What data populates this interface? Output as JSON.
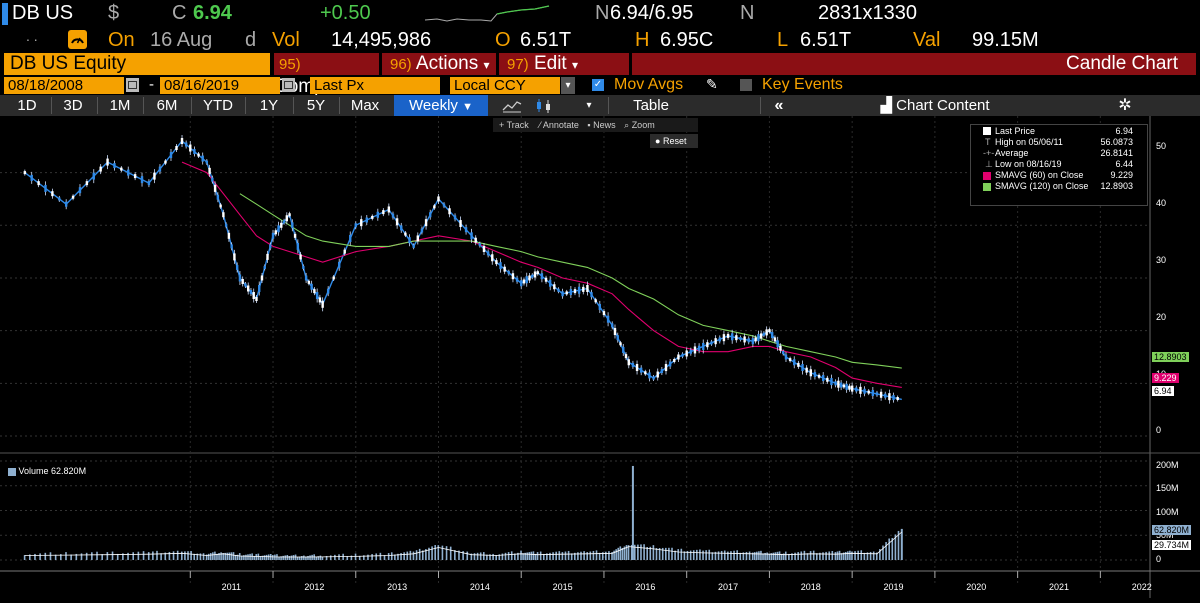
{
  "header": {
    "ticker": "DB US",
    "currency_symbol": "$",
    "close_label": "C",
    "last_price": "6.94",
    "change": "+0.50",
    "bid_ask_prefix": "N",
    "bid_ask": "6.94/6.95",
    "bid_ask_suffix": "N",
    "size": "2831x1330",
    "on_label": "On",
    "date": "16 Aug",
    "date_suffix": "d",
    "vol_label": "Vol",
    "volume": "14,495,986",
    "open_label": "O",
    "open": "6.51T",
    "high_label": "H",
    "high": "6.95C",
    "low_label": "L",
    "low": "6.51T",
    "val_label": "Val",
    "value": "99.15M",
    "dots": ". ."
  },
  "menu": {
    "security": "DB US Equity",
    "compare_num": "95)",
    "compare": "Compare",
    "actions_num": "96)",
    "actions": "Actions",
    "edit_num": "97)",
    "edit": "Edit",
    "title": "Candle Chart"
  },
  "controls": {
    "start_date": "08/18/2008",
    "dash": "-",
    "end_date": "08/16/2019",
    "field": "Last Px",
    "currency": "Local CCY",
    "mov_avgs": "Mov Avgs",
    "key_events": "Key Events"
  },
  "toolbar": {
    "periods": [
      "1D",
      "3D",
      "1M",
      "6M",
      "YTD",
      "1Y",
      "5Y",
      "Max"
    ],
    "frequency": "Weekly",
    "table": "Table",
    "chart_content": "Chart Content"
  },
  "chart_tools": {
    "track": "Track",
    "annotate": "Annotate",
    "news": "News",
    "zoom": "Zoom",
    "reset": "Reset"
  },
  "legend": {
    "last_price_label": "Last Price",
    "last_price_value": "6.94",
    "high_label": "High on 05/06/11",
    "high_value": "56.0873",
    "average_label": "Average",
    "average_value": "26.8141",
    "low_label": "Low on 08/16/19",
    "low_value": "6.44",
    "sma60_label": "SMAVG (60)  on Close",
    "sma60_value": "9.229",
    "sma120_label": "SMAVG (120)  on Close",
    "sma120_value": "12.8903"
  },
  "volume_legend": {
    "label": "Volume 62.820M"
  },
  "price_axis": {
    "ticks": [
      "50",
      "40",
      "30",
      "20",
      "10",
      "0"
    ],
    "tags": [
      "12.8903",
      "9.229",
      "6.94"
    ]
  },
  "volume_axis": {
    "ticks": [
      "200M",
      "150M",
      "100M",
      "50M",
      "0"
    ],
    "tags": [
      "62.820M",
      "29.734M"
    ]
  },
  "x_axis": {
    "years": [
      "2011",
      "2012",
      "2013",
      "2014",
      "2015",
      "2016",
      "2017",
      "2018",
      "2019",
      "2020",
      "2021",
      "2022"
    ]
  },
  "colors": {
    "orange": "#f5a100",
    "red_menu": "#8b0f14",
    "price_line": "#2f8ae8",
    "sma60": "#e0006e",
    "sma120": "#7fd05a",
    "green_text": "#4ec94e",
    "toolbar_active": "#1a63c9"
  },
  "chart_data": {
    "type": "line",
    "x": [
      2009.0,
      2009.5,
      2010.0,
      2010.5,
      2010.9,
      2011.2,
      2011.4,
      2011.6,
      2011.8,
      2012.0,
      2012.2,
      2012.4,
      2012.6,
      2013.0,
      2013.4,
      2013.7,
      2014.0,
      2014.4,
      2014.7,
      2015.0,
      2015.2,
      2015.5,
      2015.8,
      2016.1,
      2016.3,
      2016.6,
      2016.9,
      2017.2,
      2017.5,
      2017.8,
      2018.0,
      2018.2,
      2018.5,
      2018.8,
      2019.0,
      2019.3,
      2019.6
    ],
    "series": [
      {
        "values": [
          50,
          44,
          52,
          48,
          56,
          52,
          42,
          30,
          26,
          38,
          42,
          30,
          25,
          40,
          43,
          36,
          45,
          38,
          33,
          29,
          31,
          27,
          28,
          21,
          14,
          11,
          15,
          17,
          19,
          18,
          20,
          15,
          12,
          10,
          9,
          8,
          6.94
        ]
      },
      {
        "values": [
          null,
          null,
          null,
          null,
          52,
          50,
          46,
          42,
          38,
          36,
          35,
          34,
          33,
          35,
          36,
          37,
          38,
          37,
          35,
          33,
          32,
          30,
          29,
          27,
          24,
          20,
          17,
          16,
          16,
          17,
          17,
          16,
          15,
          13,
          11,
          10,
          9.229
        ]
      },
      {
        "values": [
          null,
          null,
          null,
          null,
          null,
          null,
          null,
          46,
          44,
          42,
          40,
          38,
          37,
          36,
          36,
          37,
          37,
          37,
          36,
          35,
          34,
          33,
          32,
          30,
          28,
          26,
          23,
          21,
          20,
          19,
          18,
          17,
          16,
          15,
          14,
          13.5,
          12.8903
        ]
      }
    ],
    "ylim": [
      0,
      56
    ],
    "volume": [
      10,
      11,
      12,
      13,
      15,
      10,
      14,
      9,
      8,
      7,
      6,
      6,
      7,
      8,
      10,
      14,
      28,
      12,
      10,
      14,
      12,
      13,
      14,
      15,
      30,
      25,
      18,
      16,
      15,
      14,
      13,
      12,
      14,
      13,
      15,
      14,
      62.82
    ]
  }
}
